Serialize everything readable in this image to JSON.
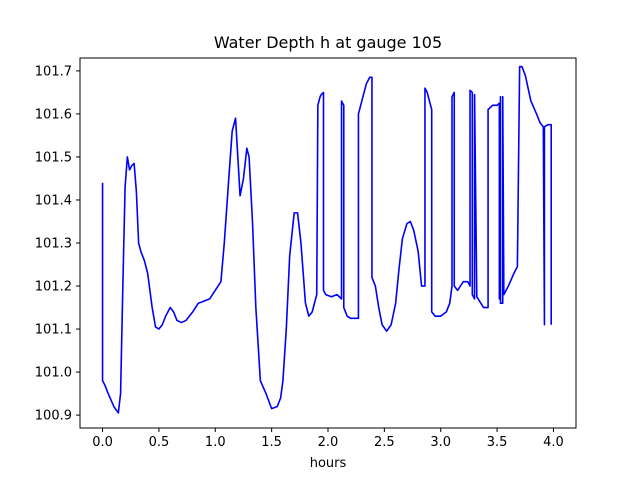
{
  "chart_data": {
    "type": "line",
    "title": "Water Depth h at gauge 105",
    "xlabel": "hours",
    "ylabel": "",
    "xlim": [
      -0.2,
      4.2
    ],
    "ylim": [
      100.87,
      101.73
    ],
    "xticks": [
      0.0,
      0.5,
      1.0,
      1.5,
      2.0,
      2.5,
      3.0,
      3.5,
      4.0
    ],
    "xtick_labels": [
      "0.0",
      "0.5",
      "1.0",
      "1.5",
      "2.0",
      "2.5",
      "3.0",
      "3.5",
      "4.0"
    ],
    "yticks": [
      100.9,
      101.0,
      101.1,
      101.2,
      101.3,
      101.4,
      101.5,
      101.6,
      101.7
    ],
    "ytick_labels": [
      "100.9",
      "101.0",
      "101.1",
      "101.2",
      "101.3",
      "101.4",
      "101.5",
      "101.6",
      "101.7"
    ],
    "grid": false,
    "line_color": "#0000ff",
    "series": [
      {
        "x": [
          0.0,
          0.0,
          0.02,
          0.05,
          0.1,
          0.14,
          0.16,
          0.18,
          0.2,
          0.22,
          0.24,
          0.26,
          0.28,
          0.3,
          0.32,
          0.34,
          0.37,
          0.4,
          0.44,
          0.47,
          0.5,
          0.53,
          0.56,
          0.6,
          0.63,
          0.66,
          0.7,
          0.74,
          0.8,
          0.85,
          0.9,
          0.95,
          1.0,
          1.05,
          1.08,
          1.12,
          1.15,
          1.18,
          1.2,
          1.22,
          1.25,
          1.28,
          1.3,
          1.33,
          1.36,
          1.4,
          1.45,
          1.5,
          1.55,
          1.58,
          1.6,
          1.63,
          1.66,
          1.7,
          1.73,
          1.76,
          1.8,
          1.83,
          1.86,
          1.9,
          1.91,
          1.93,
          1.94,
          1.96,
          1.96,
          1.98,
          2.03,
          2.08,
          2.12,
          2.12,
          2.14,
          2.14,
          2.17,
          2.2,
          2.25,
          2.27,
          2.27,
          2.3,
          2.34,
          2.37,
          2.39,
          2.39,
          2.42,
          2.45,
          2.48,
          2.52,
          2.56,
          2.6,
          2.63,
          2.66,
          2.7,
          2.73,
          2.76,
          2.8,
          2.83,
          2.86,
          2.86,
          2.88,
          2.92,
          2.92,
          2.95,
          3.0,
          3.05,
          3.08,
          3.1,
          3.1,
          3.12,
          3.12,
          3.15,
          3.2,
          3.24,
          3.26,
          3.26,
          3.28,
          3.28,
          3.3,
          3.3,
          3.32,
          3.38,
          3.42,
          3.42,
          3.46,
          3.5,
          3.52,
          3.52,
          3.53,
          3.53,
          3.55,
          3.55,
          3.56,
          3.6,
          3.65,
          3.68,
          3.7,
          3.72,
          3.75,
          3.8,
          3.85,
          3.88,
          3.91,
          3.92,
          3.92,
          3.95,
          3.98,
          3.98
        ],
        "y": [
          101.44,
          100.98,
          100.97,
          100.95,
          100.92,
          100.905,
          100.95,
          101.2,
          101.43,
          101.5,
          101.47,
          101.48,
          101.485,
          101.42,
          101.3,
          101.28,
          101.26,
          101.23,
          101.15,
          101.105,
          101.1,
          101.11,
          101.13,
          101.15,
          101.14,
          101.12,
          101.115,
          101.12,
          101.14,
          101.16,
          101.165,
          101.17,
          101.19,
          101.21,
          101.3,
          101.45,
          101.56,
          101.59,
          101.5,
          101.41,
          101.45,
          101.52,
          101.5,
          101.35,
          101.15,
          100.98,
          100.95,
          100.915,
          100.92,
          100.94,
          100.98,
          101.1,
          101.27,
          101.37,
          101.37,
          101.3,
          101.16,
          101.13,
          101.14,
          101.18,
          101.62,
          101.64,
          101.645,
          101.65,
          101.19,
          101.18,
          101.175,
          101.18,
          101.17,
          101.63,
          101.62,
          101.15,
          101.13,
          101.125,
          101.125,
          101.125,
          101.6,
          101.63,
          101.67,
          101.685,
          101.685,
          101.22,
          101.2,
          101.15,
          101.11,
          101.095,
          101.11,
          101.16,
          101.24,
          101.31,
          101.345,
          101.35,
          101.33,
          101.28,
          101.2,
          101.2,
          101.66,
          101.65,
          101.61,
          101.14,
          101.13,
          101.13,
          101.14,
          101.16,
          101.2,
          101.64,
          101.65,
          101.2,
          101.19,
          101.21,
          101.21,
          101.2,
          101.655,
          101.65,
          101.18,
          101.17,
          101.645,
          101.175,
          101.15,
          101.15,
          101.61,
          101.62,
          101.62,
          101.625,
          101.17,
          101.64,
          101.16,
          101.16,
          101.64,
          101.18,
          101.2,
          101.23,
          101.245,
          101.71,
          101.71,
          101.69,
          101.63,
          101.6,
          101.58,
          101.57,
          101.11,
          101.57,
          101.575,
          101.575,
          101.11
        ]
      }
    ]
  }
}
